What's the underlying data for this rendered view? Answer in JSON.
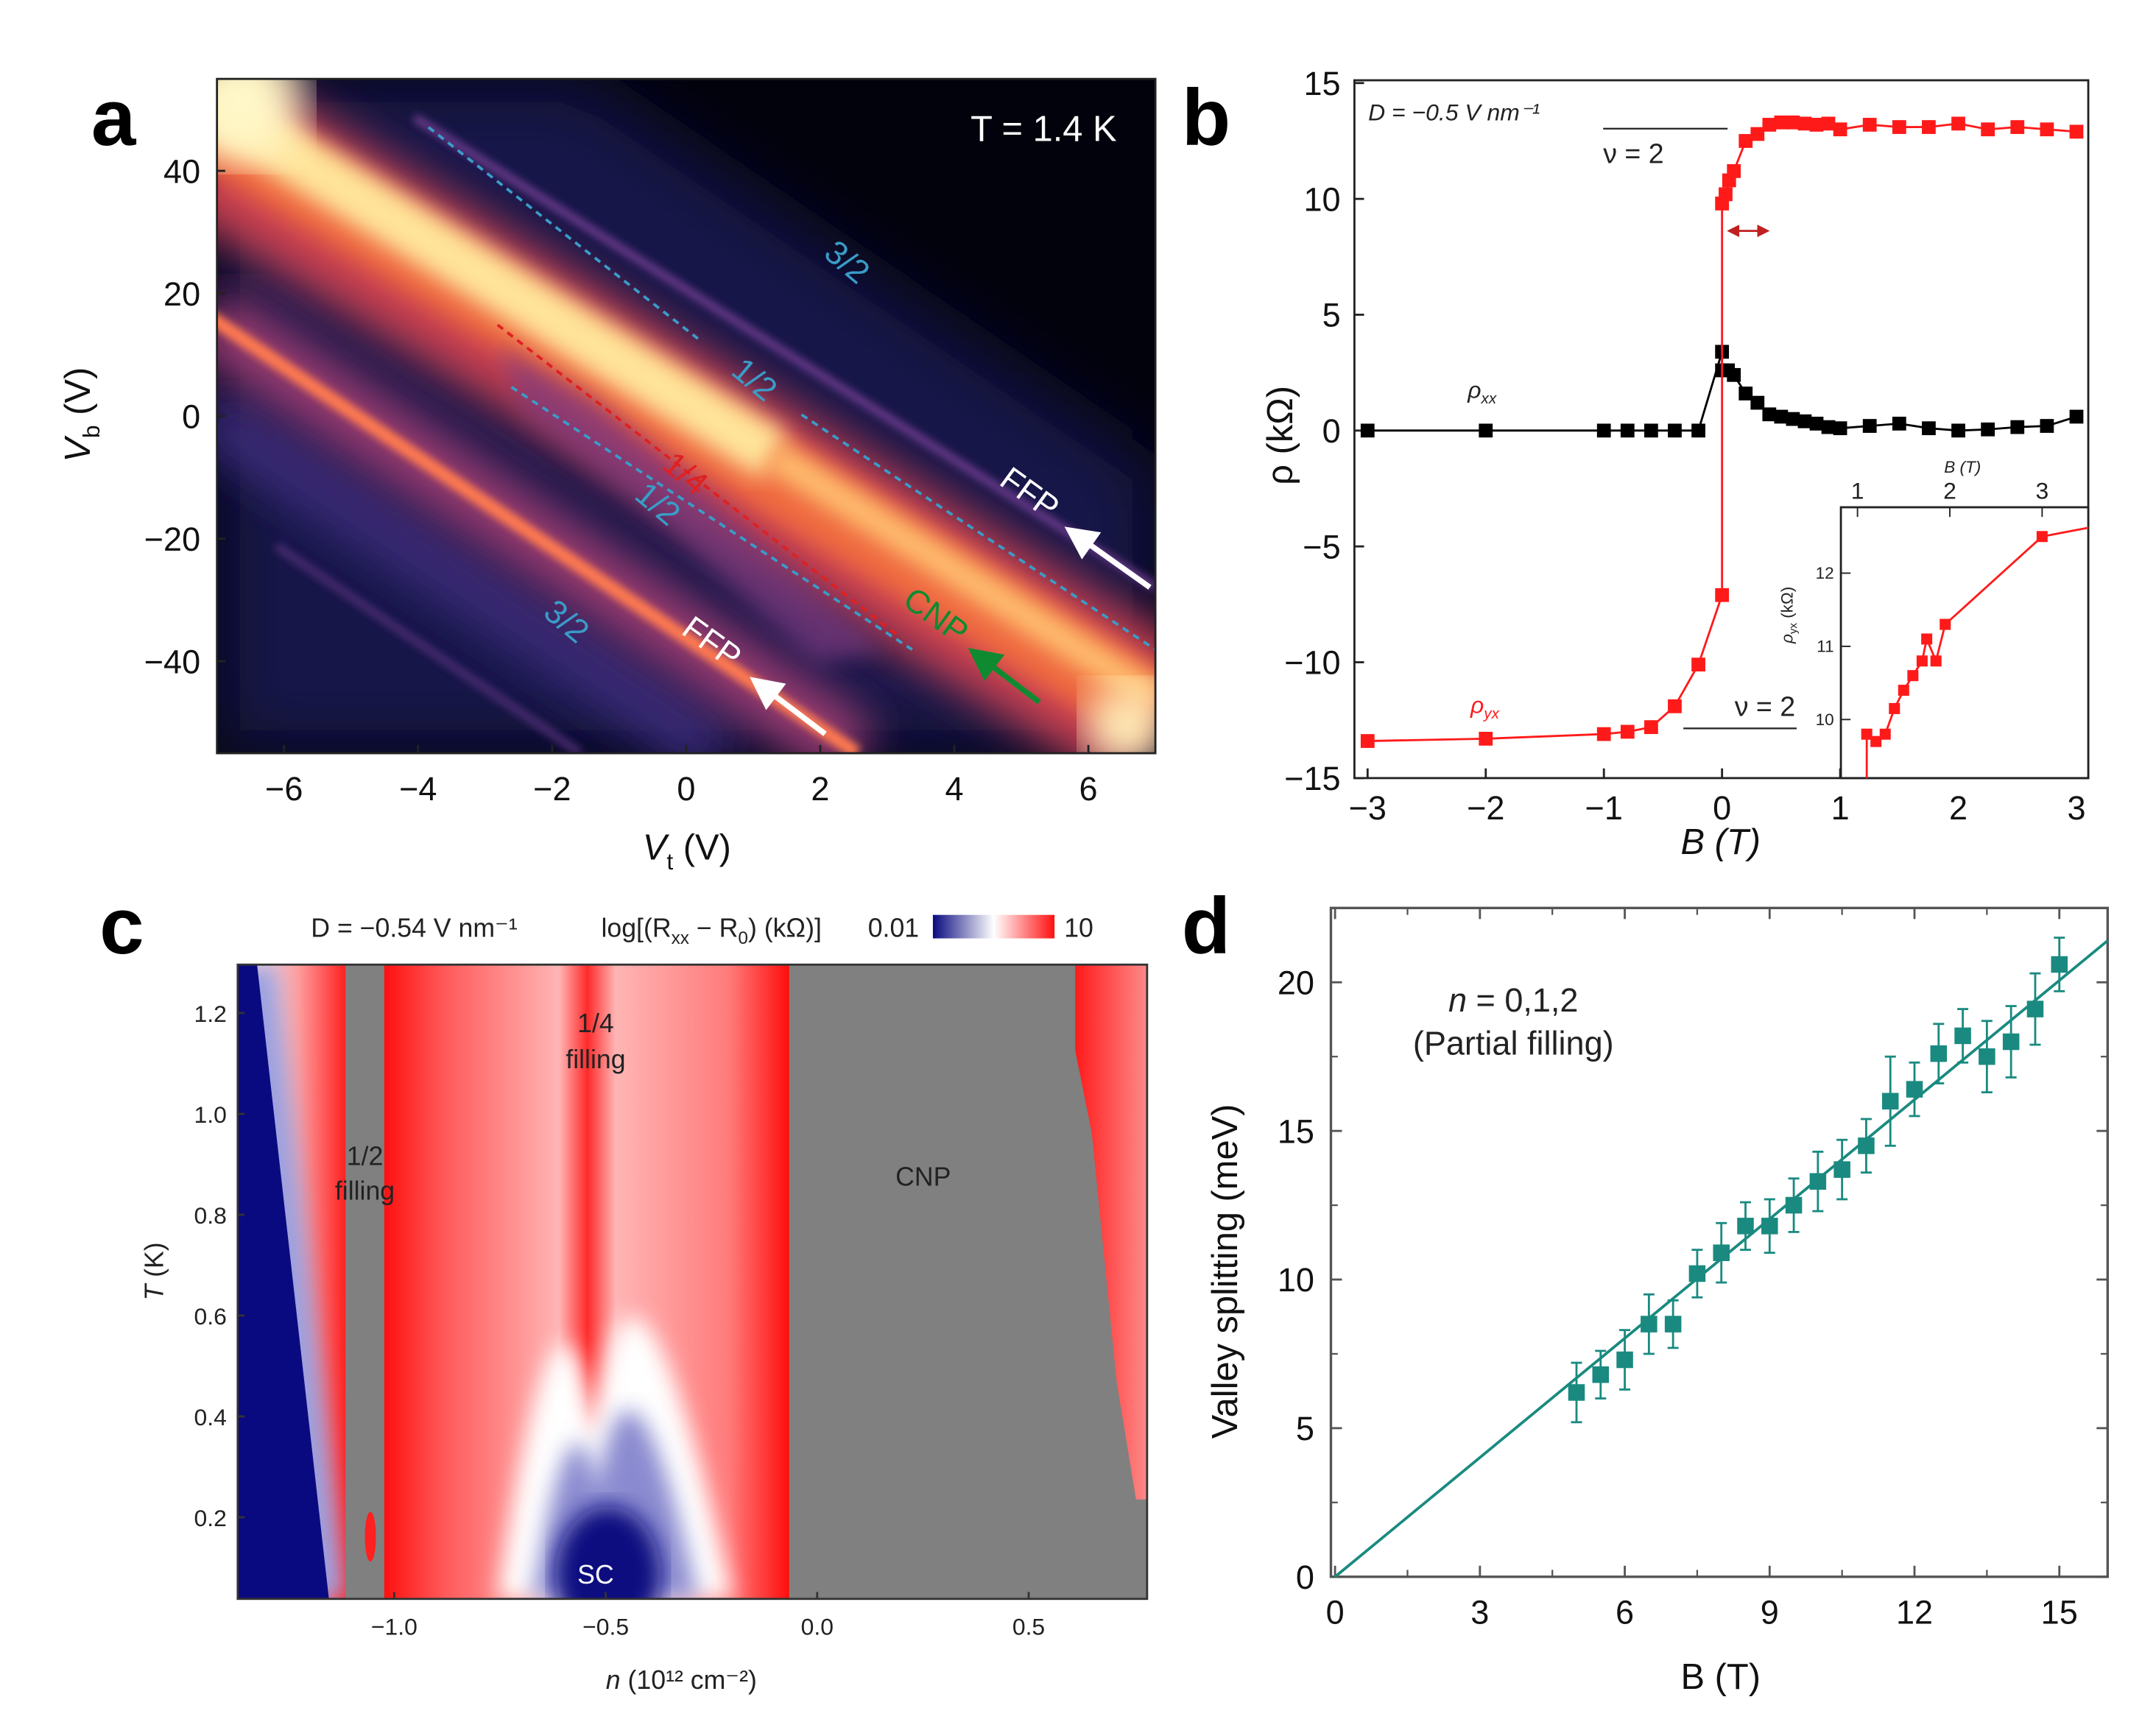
{
  "panel_labels": [
    "a",
    "b",
    "c",
    "d"
  ],
  "chart_data": [
    {
      "type": "heatmap",
      "panel": "a",
      "xlabel": {
        "main": "V",
        "sub": "t",
        "unit": " (V)"
      },
      "ylabel": {
        "main": "V",
        "sub": "b",
        "unit": " (V)"
      },
      "xlim": [
        -7,
        7
      ],
      "ylim": [
        -55,
        55
      ],
      "xticks": [
        -6,
        -4,
        -2,
        0,
        2,
        4,
        6
      ],
      "xtick_labels": [
        "−6",
        "−4",
        "−2",
        "0",
        "2",
        "4",
        "6"
      ],
      "yticks": [
        40,
        20,
        0,
        -20,
        -40
      ],
      "ytick_labels": [
        "40",
        "20",
        "0",
        "−20",
        "−40"
      ],
      "annotations": {
        "temperature": "T = 1.4 K",
        "upper_3_2": "3/2",
        "upper_1_2": "1/2",
        "quarter": "1/4",
        "lower_1_2": "1/2",
        "lower_3_2": "3/2",
        "ffp_upper": "FFP",
        "ffp_lower": "FFP",
        "cnp": "CNP"
      },
      "colors": {
        "low": "#000010",
        "mid": "#e0503a",
        "high": "#fff6c0",
        "dashed_blue": "#3a9cc8",
        "dashed_red": "#e02020",
        "cnp": "#108a30"
      }
    },
    {
      "type": "scatter",
      "panel": "b",
      "xlabel": "B (T)",
      "ylabel": "ρ (kΩ)",
      "xlim": [
        -3.1,
        3.1
      ],
      "ylim": [
        -15,
        15
      ],
      "xticks": [
        -3,
        -2,
        -1,
        0,
        1,
        2,
        3
      ],
      "xtick_labels": [
        "−3",
        "−2",
        "−1",
        "0",
        "1",
        "2",
        "3"
      ],
      "yticks": [
        15,
        10,
        5,
        0,
        -5,
        -10,
        -15
      ],
      "ytick_labels": [
        "15",
        "10",
        "5",
        "0",
        "−5",
        "−10",
        "−15"
      ],
      "annotations": {
        "field": "D = −0.5 V nm⁻¹",
        "nu_top": "ν = 2",
        "nu_bottom": "ν = 2"
      },
      "series": [
        {
          "name": "ρxx",
          "label_main": "ρ",
          "label_sub": "xx",
          "color": "#000000",
          "x": [
            -3,
            -2,
            -1,
            -0.8,
            -0.6,
            -0.4,
            -0.2,
            0,
            0,
            0.05,
            0.1,
            0.2,
            0.3,
            0.4,
            0.5,
            0.6,
            0.7,
            0.8,
            0.9,
            1.0,
            1.25,
            1.5,
            1.75,
            2.0,
            2.25,
            2.5,
            2.75,
            3.0
          ],
          "y": [
            0,
            0,
            0,
            0,
            0,
            0,
            0,
            3.4,
            2.6,
            2.6,
            2.4,
            1.6,
            1.2,
            0.7,
            0.6,
            0.5,
            0.4,
            0.3,
            0.15,
            0.1,
            0.2,
            0.3,
            0.1,
            0,
            0.05,
            0.15,
            0.2,
            0.6
          ]
        },
        {
          "name": "ρyx",
          "label_main": "ρ",
          "label_sub": "yx",
          "color": "#ff1a1a",
          "x": [
            -3,
            -2,
            -1,
            -0.8,
            -0.6,
            -0.4,
            -0.2,
            0,
            0,
            0.03,
            0.06,
            0.1,
            0.2,
            0.3,
            0.4,
            0.5,
            0.6,
            0.7,
            0.8,
            0.9,
            1.0,
            1.25,
            1.5,
            1.75,
            2.0,
            2.25,
            2.5,
            2.75,
            3.0
          ],
          "y": [
            -13.4,
            -13.3,
            -13.1,
            -13.0,
            -12.8,
            -11.9,
            -10.1,
            -7.1,
            9.8,
            10.2,
            10.8,
            11.2,
            12.5,
            12.8,
            13.2,
            13.3,
            13.3,
            13.25,
            13.2,
            13.25,
            13.0,
            13.2,
            13.1,
            13.1,
            13.25,
            13.0,
            13.1,
            13.0,
            12.9
          ]
        }
      ],
      "inset": {
        "xlabel": "B (T)",
        "ylabel_main": "ρ",
        "ylabel_sub": "yx",
        "ylabel_unit": " (kΩ)",
        "xlim": [
          0.82,
          3.5
        ],
        "ylim": [
          9.2,
          12.9
        ],
        "xticks": [
          1,
          2,
          3
        ],
        "xtick_labels": [
          "1",
          "2",
          "3"
        ],
        "yticks": [
          12,
          11,
          10
        ],
        "ytick_labels": [
          "12",
          "11",
          "10"
        ],
        "x": [
          1.1,
          1.2,
          1.3,
          1.4,
          1.5,
          1.6,
          1.7,
          1.75,
          1.85,
          1.95,
          3.0
        ],
        "y": [
          9.8,
          9.7,
          9.8,
          10.15,
          10.4,
          10.6,
          10.8,
          11.1,
          10.8,
          11.3,
          12.5
        ]
      }
    },
    {
      "type": "heatmap",
      "panel": "c",
      "title_field": "D = −0.54 V nm⁻¹",
      "colorbar_label": {
        "pre": "log[(R",
        "sub1": "xx",
        "mid": " − R",
        "sub2": "0",
        "post": ") (kΩ)]"
      },
      "colorbar_min": "0.01",
      "colorbar_max": "10",
      "colors": {
        "low": "#0a0a80",
        "mid": "#ffffff",
        "high": "#ff1010",
        "masked": "#808080"
      },
      "xlabel": {
        "main": "n",
        "rest": " (10¹² cm⁻²)"
      },
      "ylabel": {
        "main": "T",
        "rest": " (K)"
      },
      "xlim": [
        -1.37,
        0.78
      ],
      "ylim": [
        0.04,
        1.3
      ],
      "xticks": [
        -1.0,
        -0.5,
        0.0,
        0.5
      ],
      "xtick_labels": [
        "−1.0",
        "−0.5",
        "0.0",
        "0.5"
      ],
      "yticks": [
        1.2,
        1.0,
        0.8,
        0.6,
        0.4,
        0.2
      ],
      "ytick_labels": [
        "1.2",
        "1.0",
        "0.8",
        "0.6",
        "0.4",
        "0.2"
      ],
      "annotations": {
        "quarter_1": "1/4",
        "quarter_2": "filling",
        "half_1": "1/2",
        "half_2": "filling",
        "cnp": "CNP",
        "sc": "SC"
      }
    },
    {
      "type": "scatter",
      "panel": "d",
      "xlabel": "B (T)",
      "ylabel": "Valley splitting (meV)",
      "xlim": [
        0,
        16
      ],
      "ylim": [
        0,
        22.5
      ],
      "xticks": [
        0,
        3,
        6,
        9,
        12,
        15
      ],
      "xtick_labels": [
        "0",
        "3",
        "6",
        "9",
        "12",
        "15"
      ],
      "yticks": [
        0,
        5,
        10,
        15,
        20
      ],
      "ytick_labels": [
        "0",
        "5",
        "10",
        "15",
        "20"
      ],
      "annotations": {
        "n_main": "n",
        "n_rest": " = 0,1,2",
        "partial": "(Partial filling)"
      },
      "color": "#1a8a80",
      "series": [
        {
          "name": "valley splitting",
          "x": [
            5,
            5.5,
            6,
            6.5,
            7,
            7.5,
            8,
            8.5,
            9,
            9.5,
            10,
            10.5,
            11,
            11.5,
            12,
            12.5,
            13,
            13.5,
            14,
            14.5,
            15
          ],
          "y": [
            6.2,
            6.8,
            7.3,
            8.5,
            8.5,
            10.2,
            10.9,
            11.8,
            11.8,
            12.5,
            13.3,
            13.7,
            14.5,
            16.0,
            16.4,
            17.6,
            18.2,
            17.5,
            18.0,
            19.1,
            20.6
          ],
          "err": [
            1.0,
            0.8,
            1.0,
            1.0,
            0.8,
            0.8,
            1.0,
            0.8,
            0.9,
            0.9,
            1.0,
            1.0,
            0.9,
            1.5,
            0.9,
            1.0,
            0.9,
            1.2,
            1.2,
            1.2,
            0.9
          ]
        }
      ],
      "fit": {
        "x": [
          0,
          16
        ],
        "y": [
          0,
          21.4
        ]
      }
    }
  ]
}
